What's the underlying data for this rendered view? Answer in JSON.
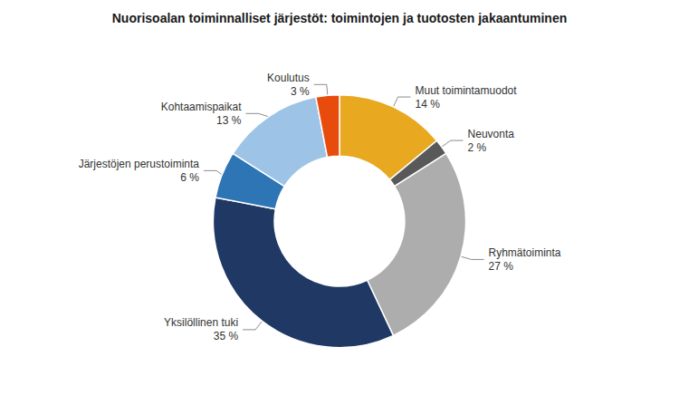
{
  "chart_data": {
    "type": "pie",
    "title": "Nuorisoalan toiminnalliset järjestöt: toimintojen ja tuotosten jakaantuminen",
    "categories": [
      "Muut toimintamuodot",
      "Neuvonta",
      "Ryhmätoiminta",
      "Yksilöllinen tuki",
      "Järjestöjen perustoiminta",
      "Kohtaamispaikat",
      "Koulutus"
    ],
    "values": [
      14,
      2,
      27,
      35,
      6,
      13,
      3
    ],
    "value_labels": [
      "14 %",
      "2 %",
      "27 %",
      "35 %",
      "6 %",
      "13 %",
      "3 %"
    ],
    "colors": [
      "#E8A820",
      "#595959",
      "#ADADAD",
      "#1F3864",
      "#2E75B6",
      "#9DC3E6",
      "#E84C0C"
    ],
    "data_labels": true
  }
}
